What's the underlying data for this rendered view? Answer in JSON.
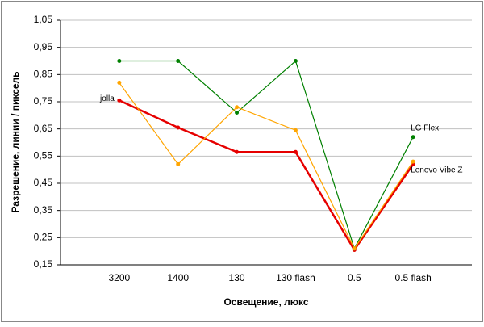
{
  "chart_data": {
    "type": "line",
    "x_label": "Освещение, люкс",
    "y_label": "Разрешение, линии / пиксель",
    "categories": [
      "3200",
      "1400",
      "130",
      "130 flash",
      "0.5",
      "0.5 flash"
    ],
    "series": [
      {
        "name": "jolla",
        "color": "#e60000",
        "values": [
          0.755,
          0.655,
          0.565,
          0.565,
          0.205,
          0.52
        ]
      },
      {
        "name": "LG Flex",
        "color": "#008000",
        "values": [
          0.9,
          0.9,
          0.71,
          0.9,
          0.21,
          0.62
        ]
      },
      {
        "name": "Lenovo Vibe Z",
        "color": "#ffa500",
        "values": [
          0.82,
          0.52,
          0.73,
          0.645,
          0.21,
          0.53
        ]
      }
    ],
    "ylim": [
      0.15,
      1.05
    ],
    "yticks": [
      {
        "value": 0.15,
        "label": "0,15"
      },
      {
        "value": 0.25,
        "label": "0,25"
      },
      {
        "value": 0.35,
        "label": "0,35"
      },
      {
        "value": 0.45,
        "label": "0,45"
      },
      {
        "value": 0.55,
        "label": "0,55"
      },
      {
        "value": 0.65,
        "label": "0,65"
      },
      {
        "value": 0.75,
        "label": "0,75"
      },
      {
        "value": 0.85,
        "label": "0,85"
      },
      {
        "value": 0.95,
        "label": "0,95"
      },
      {
        "value": 1.05,
        "label": "1,05"
      }
    ],
    "grid": true
  }
}
